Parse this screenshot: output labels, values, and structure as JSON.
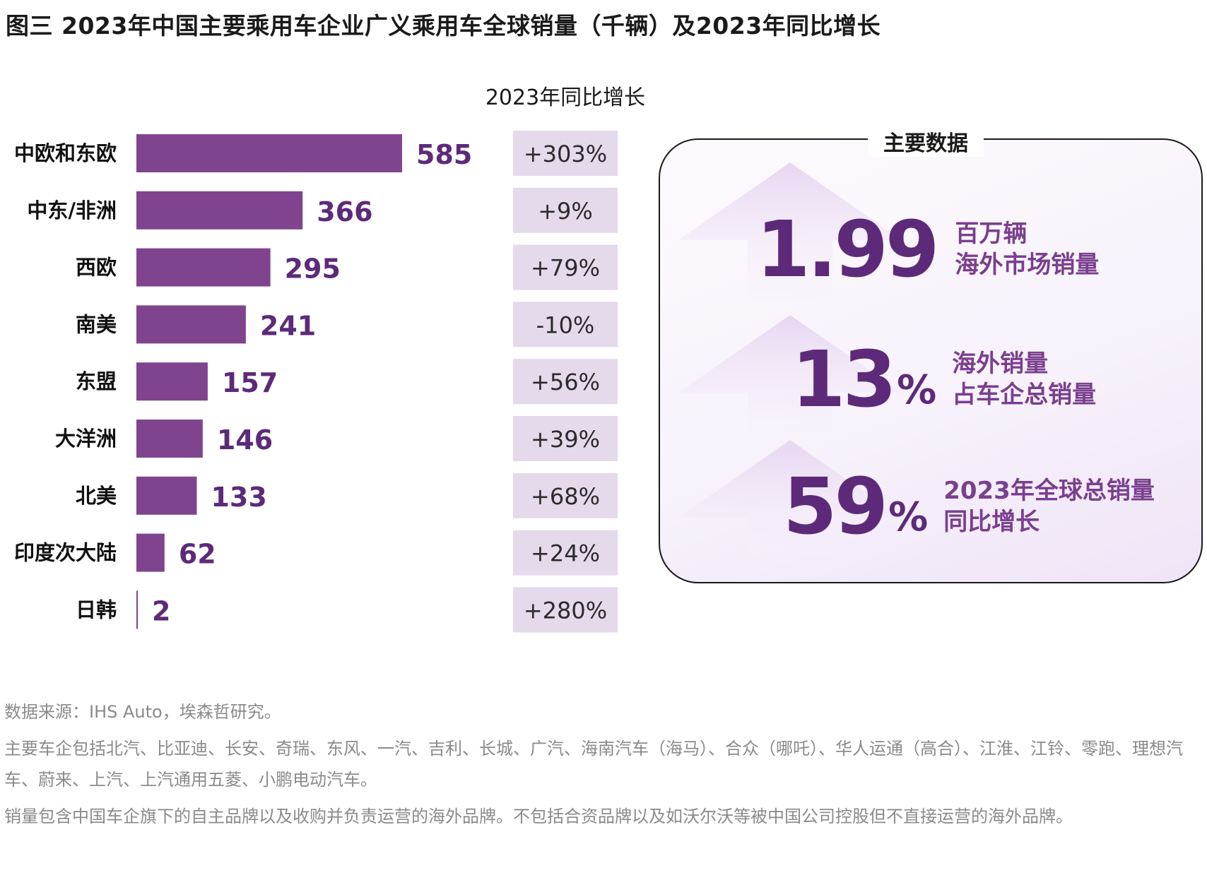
{
  "title": "图三  2023年中国主要乘用车企业广义乘用车全球销量（千辆）及2023年同比增长",
  "growth_column_title": "2023年同比增长",
  "colors": {
    "bar": "#80448f",
    "value": "#5d2a7a",
    "pct_box": "#e5d9ec",
    "accent_text": "#7a3f8e"
  },
  "chart_data": {
    "type": "bar",
    "orientation": "horizontal",
    "title": "2023年中国主要乘用车企业广义乘用车全球销量（千辆）",
    "unit": "千辆",
    "categories": [
      "中欧和东欧",
      "中东/非洲",
      "西欧",
      "南美",
      "东盟",
      "大洋洲",
      "北美",
      "印度次大陆",
      "日韩"
    ],
    "values": [
      585,
      366,
      295,
      241,
      157,
      146,
      133,
      62,
      2
    ],
    "growth_title": "2023年同比增长",
    "growth": [
      "+303%",
      "+9%",
      "+79%",
      "-10%",
      "+56%",
      "+39%",
      "+68%",
      "+24%",
      "+280%"
    ]
  },
  "key_data": {
    "title": "主要数据",
    "items": [
      {
        "number": "1.99",
        "suffix": "",
        "line1": "百万辆",
        "line2": "海外市场销量"
      },
      {
        "number": "13",
        "suffix": "%",
        "line1": "海外销量",
        "line2": "占车企总销量"
      },
      {
        "number": "59",
        "suffix": "%",
        "line1": "2023年全球总销量",
        "line2": "同比增长"
      }
    ]
  },
  "notes": {
    "source": "数据来源：IHS Auto，埃森哲研究。",
    "companies": "主要车企包括北汽、比亚迪、长安、奇瑞、东风、一汽、吉利、长城、广汽、海南汽车（海马）、合众（哪吒）、华人运通（高合）、江淮、江铃、零跑、理想汽车、蔚来、上汽、上汽通用五菱、小鹏电动汽车。",
    "scope": "销量包含中国车企旗下的自主品牌以及收购并负责运营的海外品牌。不包括合资品牌以及如沃尔沃等被中国公司控股但不直接运营的海外品牌。"
  }
}
